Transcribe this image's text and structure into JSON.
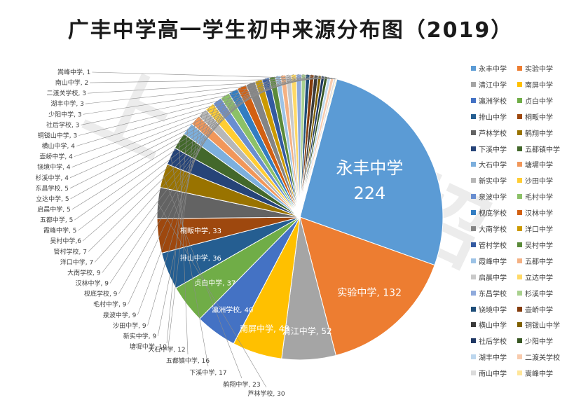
{
  "chart_data": {
    "type": "pie",
    "title": "广丰中学高一学生初中来源分布图（2019）",
    "slices": [
      {
        "name": "永丰中学",
        "value": 224,
        "color": "#5b9bd5"
      },
      {
        "name": "实验中学",
        "value": 132,
        "color": "#ed7d31"
      },
      {
        "name": "清江中学",
        "value": 52,
        "color": "#a5a5a5"
      },
      {
        "name": "南屏中学",
        "value": 48,
        "color": "#ffc000"
      },
      {
        "name": "瀛洲学校",
        "value": 40,
        "color": "#4472c4"
      },
      {
        "name": "贞白中学",
        "value": 37,
        "color": "#70ad47"
      },
      {
        "name": "排山中学",
        "value": 36,
        "color": "#255e91"
      },
      {
        "name": "桐畈中学",
        "value": 33,
        "color": "#9e480e"
      },
      {
        "name": "芦林学校",
        "value": 30,
        "color": "#636363"
      },
      {
        "name": "鹤翔中学",
        "value": 23,
        "color": "#997300"
      },
      {
        "name": "下溪中学",
        "value": 17,
        "color": "#264478"
      },
      {
        "name": "五都镇中学",
        "value": 16,
        "color": "#43682b"
      },
      {
        "name": "大石中学",
        "value": 12,
        "color": "#7cafdd"
      },
      {
        "name": "塘墀中学",
        "value": 10,
        "color": "#f1975a"
      },
      {
        "name": "新实中学",
        "value": 9,
        "color": "#b7b7b7"
      },
      {
        "name": "沙田中学",
        "value": 9,
        "color": "#ffcd33"
      },
      {
        "name": "泉波中学",
        "value": 9,
        "color": "#698ed0"
      },
      {
        "name": "毛村中学",
        "value": 9,
        "color": "#8cc168"
      },
      {
        "name": "枧底学校",
        "value": 9,
        "color": "#327dc2"
      },
      {
        "name": "汉林中学",
        "value": 9,
        "color": "#d26012"
      },
      {
        "name": "大南学校",
        "value": 9,
        "color": "#848484"
      },
      {
        "name": "洋口中学",
        "value": 7,
        "color": "#cc9a00"
      },
      {
        "name": "管村学校",
        "value": 7,
        "color": "#335aa1"
      },
      {
        "name": "吴村中学",
        "value": 6,
        "color": "#5a8a39"
      },
      {
        "name": "霞峰中学",
        "value": 5,
        "color": "#9dc3e6"
      },
      {
        "name": "五都中学",
        "value": 5,
        "color": "#f4b183"
      },
      {
        "name": "启晨中学",
        "value": 5,
        "color": "#c9c9c9"
      },
      {
        "name": "立达中学",
        "value": 5,
        "color": "#ffd966"
      },
      {
        "name": "东昌学校",
        "value": 5,
        "color": "#8faadc"
      },
      {
        "name": "杉溪中学",
        "value": 4,
        "color": "#a9d18e"
      },
      {
        "name": "铙境中学",
        "value": 4,
        "color": "#1f4e79"
      },
      {
        "name": "壶峤中学",
        "value": 4,
        "color": "#843c0c"
      },
      {
        "name": "横山中学",
        "value": 4,
        "color": "#3a3a3a"
      },
      {
        "name": "铜钹山中学",
        "value": 3,
        "color": "#7f6000"
      },
      {
        "name": "社后学校",
        "value": 3,
        "color": "#203864"
      },
      {
        "name": "少阳中学",
        "value": 3,
        "color": "#385723"
      },
      {
        "name": "湖丰中学",
        "value": 3,
        "color": "#bdd7ee"
      },
      {
        "name": "二渡关学校",
        "value": 3,
        "color": "#f8cbad"
      },
      {
        "name": "南山中学",
        "value": 2,
        "color": "#dbdbdb"
      },
      {
        "name": "嵩峰中学",
        "value": 1,
        "color": "#ffe699"
      }
    ],
    "data_labels": [
      "永丰中学",
      "224",
      "实验中学, 132",
      "清江中学, 52",
      "南屏中学, 48",
      "瀛洲学校, 40",
      "贞白中学, 37",
      "排山中学, 36",
      "桐畈中学, 33",
      "芦林学校, 30",
      "鹤翔中学, 23",
      "下溪中学, 17",
      "五都镇中学, 16",
      "大石中学, 12",
      "塘墀中学, 10",
      "新实中学, 9",
      "沙田中学, 9",
      "泉波中学, 9",
      "毛村中学, 9",
      "枧底学校, 9",
      "汉林中学, 9",
      "大南学校, 9",
      "洋口中学, 7",
      "管村学校, 7",
      "吴村中学,6",
      "霞峰中学, 5",
      "五都中学, 5",
      "启晨中学, 5",
      "立达中学, 5",
      "东昌学校, 5",
      "杉溪中学, 4",
      "铙境中学, 4",
      "壶峤中学, 4",
      "横山中学, 4",
      "铜钹山中学, 3",
      "社后学校, 3",
      "少阳中学, 3",
      "湖丰中学, 3",
      "二渡关学校, 3",
      "南山中学, 2",
      "嵩峰中学, 1"
    ],
    "legend_position": "right",
    "legend_columns": 2
  },
  "watermark": "上饶中招",
  "watermark_color": "#dcdcdc"
}
